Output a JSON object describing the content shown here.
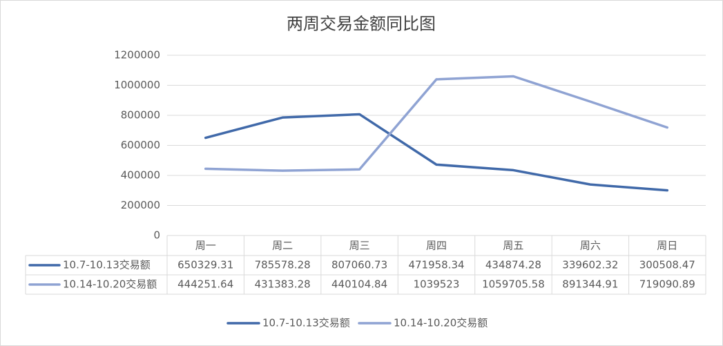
{
  "chart_data": {
    "type": "line",
    "title": "两周交易金额同比图",
    "categories": [
      "周一",
      "周二",
      "周三",
      "周四",
      "周五",
      "周六",
      "周日"
    ],
    "series": [
      {
        "name": "10.7-10.13交易额",
        "color": "#4069a9",
        "values": [
          650329.31,
          785578.28,
          807060.73,
          471958.34,
          434874.28,
          339602.32,
          300508.47
        ]
      },
      {
        "name": "10.14-10.20交易额",
        "color": "#8fa3d3",
        "values": [
          444251.64,
          431383.28,
          440104.84,
          1039523,
          1059705.58,
          891344.91,
          719090.89
        ]
      }
    ],
    "ylim": [
      0,
      1200000
    ],
    "yticks": [
      0,
      200000,
      400000,
      600000,
      800000,
      1000000,
      1200000
    ],
    "grid": true,
    "legend": "bottom"
  }
}
